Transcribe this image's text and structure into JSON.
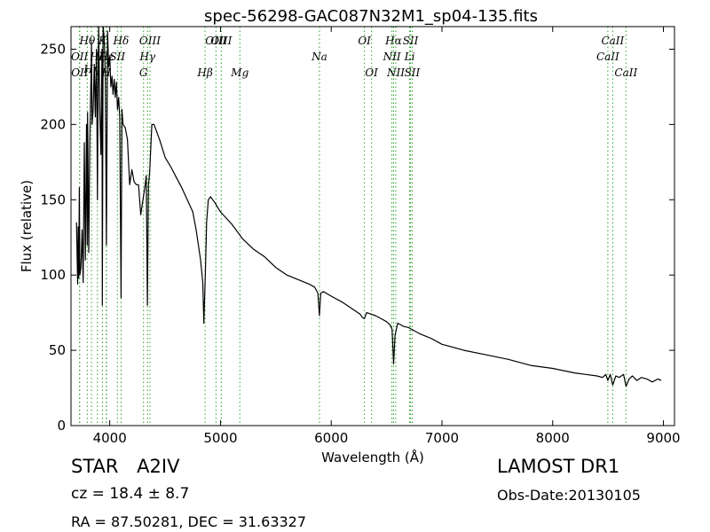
{
  "chart_data": {
    "type": "line",
    "title": "spec-56298-GAC087N32M1_sp04-135.fits",
    "xlabel": "Wavelength (Å)",
    "ylabel": "Flux (relative)",
    "xlim": [
      3650,
      9100
    ],
    "ylim": [
      0,
      265
    ],
    "xticks": [
      4000,
      5000,
      6000,
      7000,
      8000,
      9000
    ],
    "yticks": [
      0,
      50,
      100,
      150,
      200,
      250
    ],
    "grid": false,
    "legend": "none",
    "series": [
      {
        "color": "#000000",
        "x": [
          3700,
          3710,
          3715,
          3720,
          3725,
          3730,
          3740,
          3750,
          3760,
          3770,
          3780,
          3790,
          3797,
          3800,
          3810,
          3820,
          3830,
          3835,
          3840,
          3850,
          3860,
          3870,
          3880,
          3889,
          3895,
          3900,
          3910,
          3920,
          3930,
          3933,
          3940,
          3950,
          3960,
          3970,
          3980,
          3990,
          4000,
          4010,
          4020,
          4030,
          4040,
          4050,
          4060,
          4070,
          4080,
          4090,
          4102,
          4110,
          4120,
          4140,
          4160,
          4180,
          4200,
          4220,
          4240,
          4260,
          4280,
          4300,
          4320,
          4330,
          4340,
          4350,
          4360,
          4380,
          4400,
          4450,
          4500,
          4550,
          4600,
          4650,
          4700,
          4750,
          4780,
          4800,
          4820,
          4840,
          4850,
          4855,
          4861,
          4867,
          4875,
          4890,
          4910,
          4930,
          4950,
          5000,
          5100,
          5200,
          5300,
          5400,
          5500,
          5600,
          5700,
          5800,
          5850,
          5880,
          5893,
          5905,
          5930,
          6000,
          6100,
          6200,
          6260,
          6280,
          6300,
          6320,
          6400,
          6450,
          6500,
          6530,
          6550,
          6563,
          6576,
          6600,
          6650,
          6700,
          6800,
          6900,
          7000,
          7200,
          7400,
          7600,
          7800,
          8000,
          8200,
          8300,
          8400,
          8450,
          8480,
          8498,
          8520,
          8542,
          8570,
          8600,
          8640,
          8662,
          8690,
          8720,
          8760,
          8800,
          8850,
          8900,
          8950,
          8980
        ],
        "y": [
          135,
          94,
          132,
          98,
          158,
          100,
          105,
          130,
          95,
          188,
          110,
          200,
          120,
          208,
          115,
          188,
          230,
          255,
          200,
          210,
          240,
          205,
          250,
          150,
          232,
          265,
          210,
          180,
          250,
          80,
          265,
          258,
          232,
          120,
          262,
          238,
          245,
          225,
          232,
          220,
          230,
          218,
          228,
          210,
          218,
          205,
          85,
          210,
          200,
          198,
          190,
          160,
          170,
          162,
          160,
          160,
          140,
          150,
          160,
          166,
          80,
          160,
          168,
          200,
          200,
          190,
          178,
          172,
          165,
          158,
          150,
          142,
          130,
          120,
          110,
          95,
          68,
          80,
          95,
          110,
          135,
          150,
          152,
          150,
          148,
          142,
          134,
          124,
          117,
          112,
          105,
          100,
          97,
          94,
          92,
          88,
          73,
          88,
          89,
          86,
          82,
          77,
          74,
          72,
          71,
          75,
          73,
          71,
          69,
          67,
          64,
          41,
          60,
          68,
          66,
          65,
          61,
          58,
          54,
          50,
          47,
          44,
          40,
          38,
          35,
          34,
          33,
          32,
          34,
          30,
          34,
          27,
          33,
          32,
          34,
          26,
          31,
          33,
          30,
          32,
          31,
          29,
          31,
          30
        ]
      }
    ],
    "lines": [
      {
        "label": "Hθ",
        "x": 3797,
        "pos": "top",
        "color": "#2ca02c"
      },
      {
        "label": "OII",
        "x": 3727,
        "pos": "mid",
        "color": "#2ca02c"
      },
      {
        "label": "OII",
        "x": 3729,
        "pos": "low",
        "color": "#2ca02c"
      },
      {
        "label": "Hη",
        "x": 3835,
        "pos": "low2",
        "color": "#2ca02c"
      },
      {
        "label": "Hζ",
        "x": 3889,
        "pos": "mid",
        "color": "#2ca02c"
      },
      {
        "label": "Hε",
        "x": 3970,
        "pos": "mid",
        "color": "#2ca02c"
      },
      {
        "label": "K",
        "x": 3934,
        "pos": "top",
        "color": "#2ca02c"
      },
      {
        "label": "H",
        "x": 3968,
        "pos": "low",
        "color": "#2ca02c"
      },
      {
        "label": "SII",
        "x": 4069,
        "pos": "mid",
        "color": "#2ca02c"
      },
      {
        "label": "Hδ",
        "x": 4102,
        "pos": "top",
        "color": "#2ca02c"
      },
      {
        "label": "OIII",
        "x": 4363,
        "pos": "top",
        "color": "#2ca02c"
      },
      {
        "label": "Hγ",
        "x": 4341,
        "pos": "mid",
        "color": "#2ca02c"
      },
      {
        "label": "G",
        "x": 4305,
        "pos": "low",
        "color": "#2ca02c"
      },
      {
        "label": "OIII",
        "x": 4959,
        "pos": "top",
        "color": "#2ca02c"
      },
      {
        "label": "Hβ",
        "x": 4861,
        "pos": "low",
        "color": "#2ca02c"
      },
      {
        "label": "OIII",
        "x": 5007,
        "pos": "mid2",
        "color": "#2ca02c"
      },
      {
        "label": "Mg",
        "x": 5175,
        "pos": "low",
        "color": "#2ca02c"
      },
      {
        "label": "Na",
        "x": 5894,
        "pos": "mid",
        "color": "#2ca02c"
      },
      {
        "label": "OI",
        "x": 6300,
        "pos": "top",
        "color": "#2ca02c"
      },
      {
        "label": "OI",
        "x": 6364,
        "pos": "low",
        "color": "#2ca02c"
      },
      {
        "label": "Hα",
        "x": 6563,
        "pos": "top",
        "color": "#2ca02c"
      },
      {
        "label": "NII",
        "x": 6548,
        "pos": "mid",
        "color": "#2ca02c"
      },
      {
        "label": "NII",
        "x": 6583,
        "pos": "low",
        "color": "#2ca02c"
      },
      {
        "label": "SII",
        "x": 6716,
        "pos": "top",
        "color": "#2ca02c"
      },
      {
        "label": "Li",
        "x": 6708,
        "pos": "mid",
        "color": "#2ca02c"
      },
      {
        "label": "SII",
        "x": 6731,
        "pos": "low",
        "color": "#2ca02c"
      },
      {
        "label": "CaII",
        "x": 8498,
        "pos": "mid",
        "color": "#2ca02c"
      },
      {
        "label": "CaII",
        "x": 8542,
        "pos": "top",
        "color": "#2ca02c"
      },
      {
        "label": "CaII",
        "x": 8662,
        "pos": "low",
        "color": "#2ca02c"
      }
    ]
  },
  "info": {
    "class_type": "STAR",
    "subclass": "A2IV",
    "survey": "LAMOST DR1",
    "cz": "cz = 18.4  ± 8.7",
    "obs_date": "Obs-Date:20130105",
    "coords": "RA = 87.50281, DEC = 31.63327"
  }
}
